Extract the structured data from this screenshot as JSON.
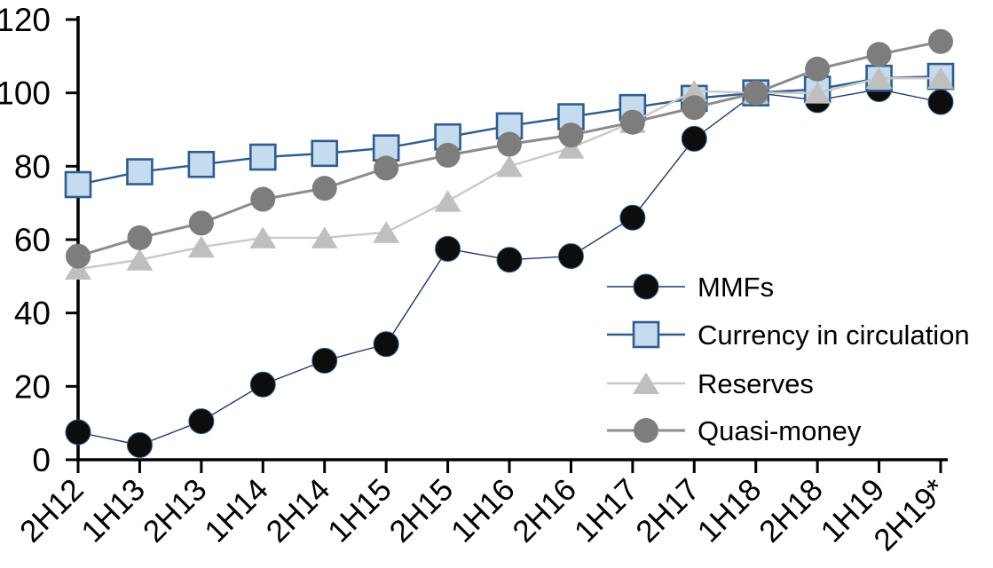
{
  "chart_data": {
    "type": "line",
    "title": "",
    "xlabel": "",
    "ylabel": "",
    "ylim": [
      0,
      120
    ],
    "ytick_interval": 20,
    "ytick_labels": [
      "0",
      "20",
      "40",
      "60",
      "80",
      "100",
      "120"
    ],
    "grid": false,
    "legend_position": "inside-right",
    "categories": [
      "2H12",
      "1H13",
      "2H13",
      "1H14",
      "2H14",
      "1H15",
      "2H15",
      "1H16",
      "2H16",
      "1H17",
      "2H17",
      "1H18",
      "2H18",
      "1H19",
      "2H19*"
    ],
    "series": [
      {
        "name": "MMFs",
        "marker": "circle",
        "marker_fill": "#0d0d0d",
        "marker_stroke": "#2e5c8a",
        "marker_stroke_width": 1,
        "line_color": "#1f3864",
        "line_width": 1.4,
        "values": [
          7.5,
          4,
          10.5,
          20.5,
          27,
          31.5,
          57.5,
          54.5,
          55.5,
          66,
          87.5,
          100,
          98,
          101,
          97.5
        ]
      },
      {
        "name": "Currency in circulation",
        "marker": "square",
        "marker_fill": "#c5dbee",
        "marker_stroke": "#2f5c8c",
        "marker_stroke_width": 2.6,
        "line_color": "#2f5c8c",
        "line_width": 2.4,
        "values": [
          75,
          78.5,
          80.5,
          82.5,
          83.5,
          85,
          88,
          91,
          93.5,
          96,
          98.5,
          100,
          101,
          104,
          104.5
        ]
      },
      {
        "name": "Reserves",
        "marker": "triangle",
        "marker_fill": "#bfbfbf",
        "marker_stroke": "#bfbfbf",
        "marker_stroke_width": 0,
        "line_color": "#c9c9c9",
        "line_width": 2.4,
        "values": [
          52,
          54.5,
          58,
          60.5,
          60.5,
          62,
          70.5,
          80,
          85,
          92,
          100.5,
          100,
          100,
          104,
          104
        ]
      },
      {
        "name": "Quasi-money",
        "marker": "circle",
        "marker_fill": "#7d7d7d",
        "marker_stroke": "#7d7d7d",
        "marker_stroke_width": 0,
        "line_color": "#8c8c8c",
        "line_width": 3,
        "values": [
          55.5,
          60.5,
          64.5,
          71,
          74,
          79.5,
          83,
          86,
          88.5,
          92,
          96,
          100,
          106.5,
          110.5,
          114
        ]
      }
    ],
    "axis_color": "#000000"
  }
}
